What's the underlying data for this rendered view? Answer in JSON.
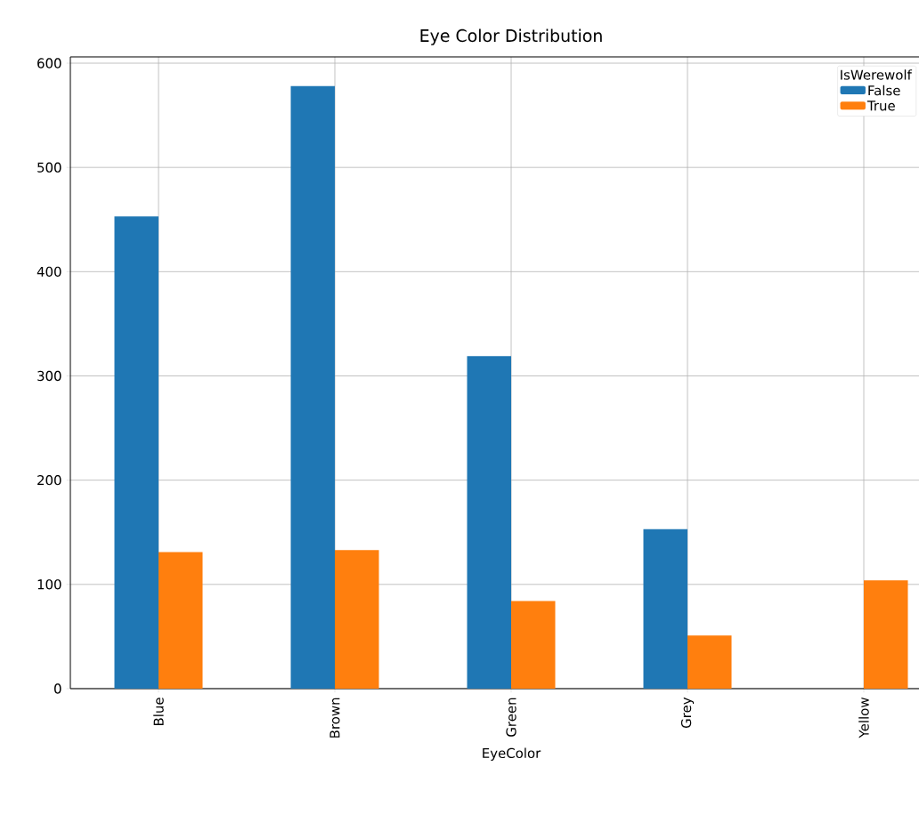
{
  "chart_data": {
    "type": "bar",
    "title": "Eye Color Distribution",
    "xlabel": "EyeColor",
    "legend_title": "IsWerewolf",
    "categories": [
      "Blue",
      "Brown",
      "Green",
      "Grey",
      "Yellow"
    ],
    "series": [
      {
        "name": "False",
        "color": "#1f77b4",
        "values": [
          453,
          578,
          319,
          153,
          0
        ]
      },
      {
        "name": "True",
        "color": "#ff7f0e",
        "values": [
          131,
          133,
          84,
          51,
          104
        ]
      }
    ],
    "ylim": [
      0,
      606
    ],
    "yticks": [
      0,
      100,
      200,
      300,
      400,
      500,
      600
    ],
    "grid": true,
    "legend": "top right"
  }
}
